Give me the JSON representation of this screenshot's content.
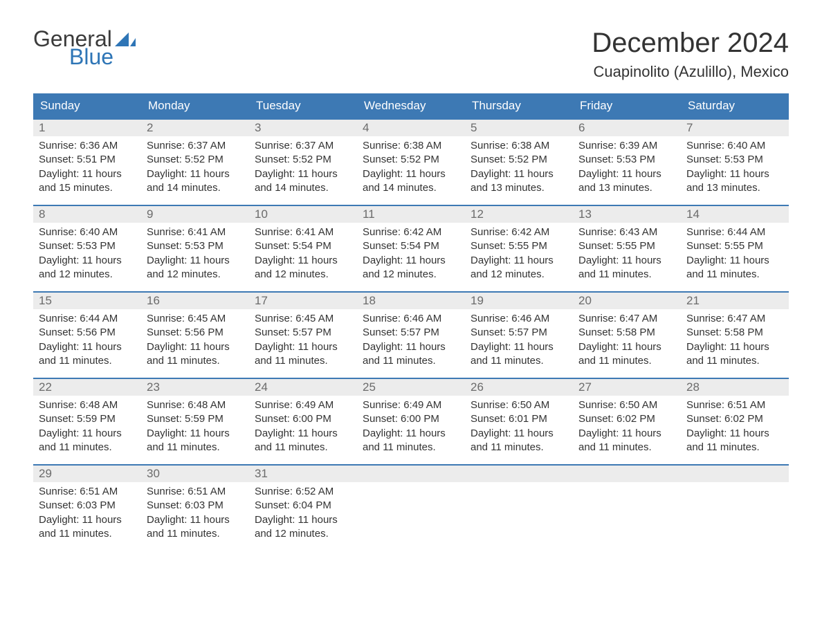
{
  "brand": {
    "word1": "General",
    "word2": "Blue"
  },
  "title": "December 2024",
  "location": "Cuapinolito (Azulillo), Mexico",
  "colors": {
    "header_bg": "#3d79b4",
    "header_text": "#ffffff",
    "daynum_bg": "#ececec",
    "daynum_text": "#6b6b6b",
    "body_text": "#333333",
    "accent": "#2e75b6",
    "page_bg": "#ffffff"
  },
  "typography": {
    "month_title_fontsize": 40,
    "location_fontsize": 22,
    "header_fontsize": 17,
    "daynum_fontsize": 17,
    "body_fontsize": 15
  },
  "layout": {
    "columns": 7,
    "rows": 5,
    "week_border_top": "2px solid #3d79b4"
  },
  "day_headers": [
    "Sunday",
    "Monday",
    "Tuesday",
    "Wednesday",
    "Thursday",
    "Friday",
    "Saturday"
  ],
  "labels": {
    "sunrise": "Sunrise:",
    "sunset": "Sunset:",
    "daylight": "Daylight:"
  },
  "days": [
    {
      "n": 1,
      "sunrise": "6:36 AM",
      "sunset": "5:51 PM",
      "dh": 11,
      "dm": 15
    },
    {
      "n": 2,
      "sunrise": "6:37 AM",
      "sunset": "5:52 PM",
      "dh": 11,
      "dm": 14
    },
    {
      "n": 3,
      "sunrise": "6:37 AM",
      "sunset": "5:52 PM",
      "dh": 11,
      "dm": 14
    },
    {
      "n": 4,
      "sunrise": "6:38 AM",
      "sunset": "5:52 PM",
      "dh": 11,
      "dm": 14
    },
    {
      "n": 5,
      "sunrise": "6:38 AM",
      "sunset": "5:52 PM",
      "dh": 11,
      "dm": 13
    },
    {
      "n": 6,
      "sunrise": "6:39 AM",
      "sunset": "5:53 PM",
      "dh": 11,
      "dm": 13
    },
    {
      "n": 7,
      "sunrise": "6:40 AM",
      "sunset": "5:53 PM",
      "dh": 11,
      "dm": 13
    },
    {
      "n": 8,
      "sunrise": "6:40 AM",
      "sunset": "5:53 PM",
      "dh": 11,
      "dm": 12
    },
    {
      "n": 9,
      "sunrise": "6:41 AM",
      "sunset": "5:53 PM",
      "dh": 11,
      "dm": 12
    },
    {
      "n": 10,
      "sunrise": "6:41 AM",
      "sunset": "5:54 PM",
      "dh": 11,
      "dm": 12
    },
    {
      "n": 11,
      "sunrise": "6:42 AM",
      "sunset": "5:54 PM",
      "dh": 11,
      "dm": 12
    },
    {
      "n": 12,
      "sunrise": "6:42 AM",
      "sunset": "5:55 PM",
      "dh": 11,
      "dm": 12
    },
    {
      "n": 13,
      "sunrise": "6:43 AM",
      "sunset": "5:55 PM",
      "dh": 11,
      "dm": 11
    },
    {
      "n": 14,
      "sunrise": "6:44 AM",
      "sunset": "5:55 PM",
      "dh": 11,
      "dm": 11
    },
    {
      "n": 15,
      "sunrise": "6:44 AM",
      "sunset": "5:56 PM",
      "dh": 11,
      "dm": 11
    },
    {
      "n": 16,
      "sunrise": "6:45 AM",
      "sunset": "5:56 PM",
      "dh": 11,
      "dm": 11
    },
    {
      "n": 17,
      "sunrise": "6:45 AM",
      "sunset": "5:57 PM",
      "dh": 11,
      "dm": 11
    },
    {
      "n": 18,
      "sunrise": "6:46 AM",
      "sunset": "5:57 PM",
      "dh": 11,
      "dm": 11
    },
    {
      "n": 19,
      "sunrise": "6:46 AM",
      "sunset": "5:57 PM",
      "dh": 11,
      "dm": 11
    },
    {
      "n": 20,
      "sunrise": "6:47 AM",
      "sunset": "5:58 PM",
      "dh": 11,
      "dm": 11
    },
    {
      "n": 21,
      "sunrise": "6:47 AM",
      "sunset": "5:58 PM",
      "dh": 11,
      "dm": 11
    },
    {
      "n": 22,
      "sunrise": "6:48 AM",
      "sunset": "5:59 PM",
      "dh": 11,
      "dm": 11
    },
    {
      "n": 23,
      "sunrise": "6:48 AM",
      "sunset": "5:59 PM",
      "dh": 11,
      "dm": 11
    },
    {
      "n": 24,
      "sunrise": "6:49 AM",
      "sunset": "6:00 PM",
      "dh": 11,
      "dm": 11
    },
    {
      "n": 25,
      "sunrise": "6:49 AM",
      "sunset": "6:00 PM",
      "dh": 11,
      "dm": 11
    },
    {
      "n": 26,
      "sunrise": "6:50 AM",
      "sunset": "6:01 PM",
      "dh": 11,
      "dm": 11
    },
    {
      "n": 27,
      "sunrise": "6:50 AM",
      "sunset": "6:02 PM",
      "dh": 11,
      "dm": 11
    },
    {
      "n": 28,
      "sunrise": "6:51 AM",
      "sunset": "6:02 PM",
      "dh": 11,
      "dm": 11
    },
    {
      "n": 29,
      "sunrise": "6:51 AM",
      "sunset": "6:03 PM",
      "dh": 11,
      "dm": 11
    },
    {
      "n": 30,
      "sunrise": "6:51 AM",
      "sunset": "6:03 PM",
      "dh": 11,
      "dm": 11
    },
    {
      "n": 31,
      "sunrise": "6:52 AM",
      "sunset": "6:04 PM",
      "dh": 11,
      "dm": 12
    }
  ]
}
